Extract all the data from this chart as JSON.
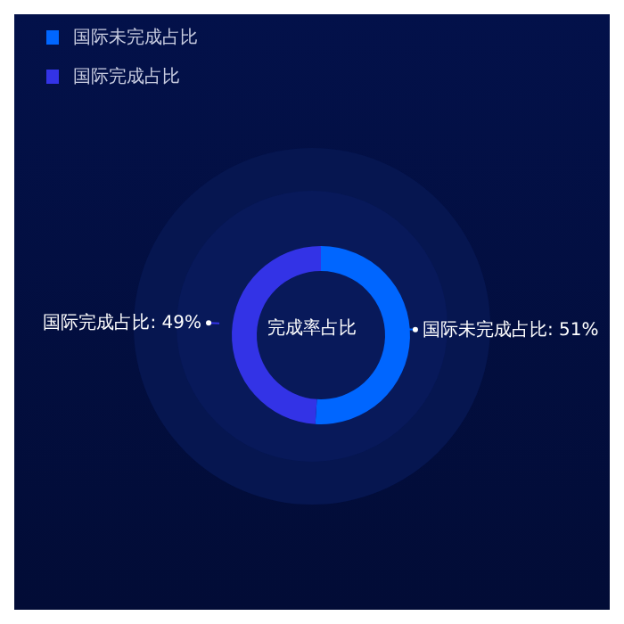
{
  "chart_data": {
    "type": "donut",
    "title": "完成率占比",
    "categories": [
      "国际未完成占比",
      "国际完成占比"
    ],
    "values": [
      51,
      49
    ],
    "colors": [
      "#0066ff",
      "#3333e6"
    ],
    "value_labels": [
      "国际未完成占比: 51%",
      "国际完成占比: 49%"
    ],
    "legend": "top left"
  }
}
